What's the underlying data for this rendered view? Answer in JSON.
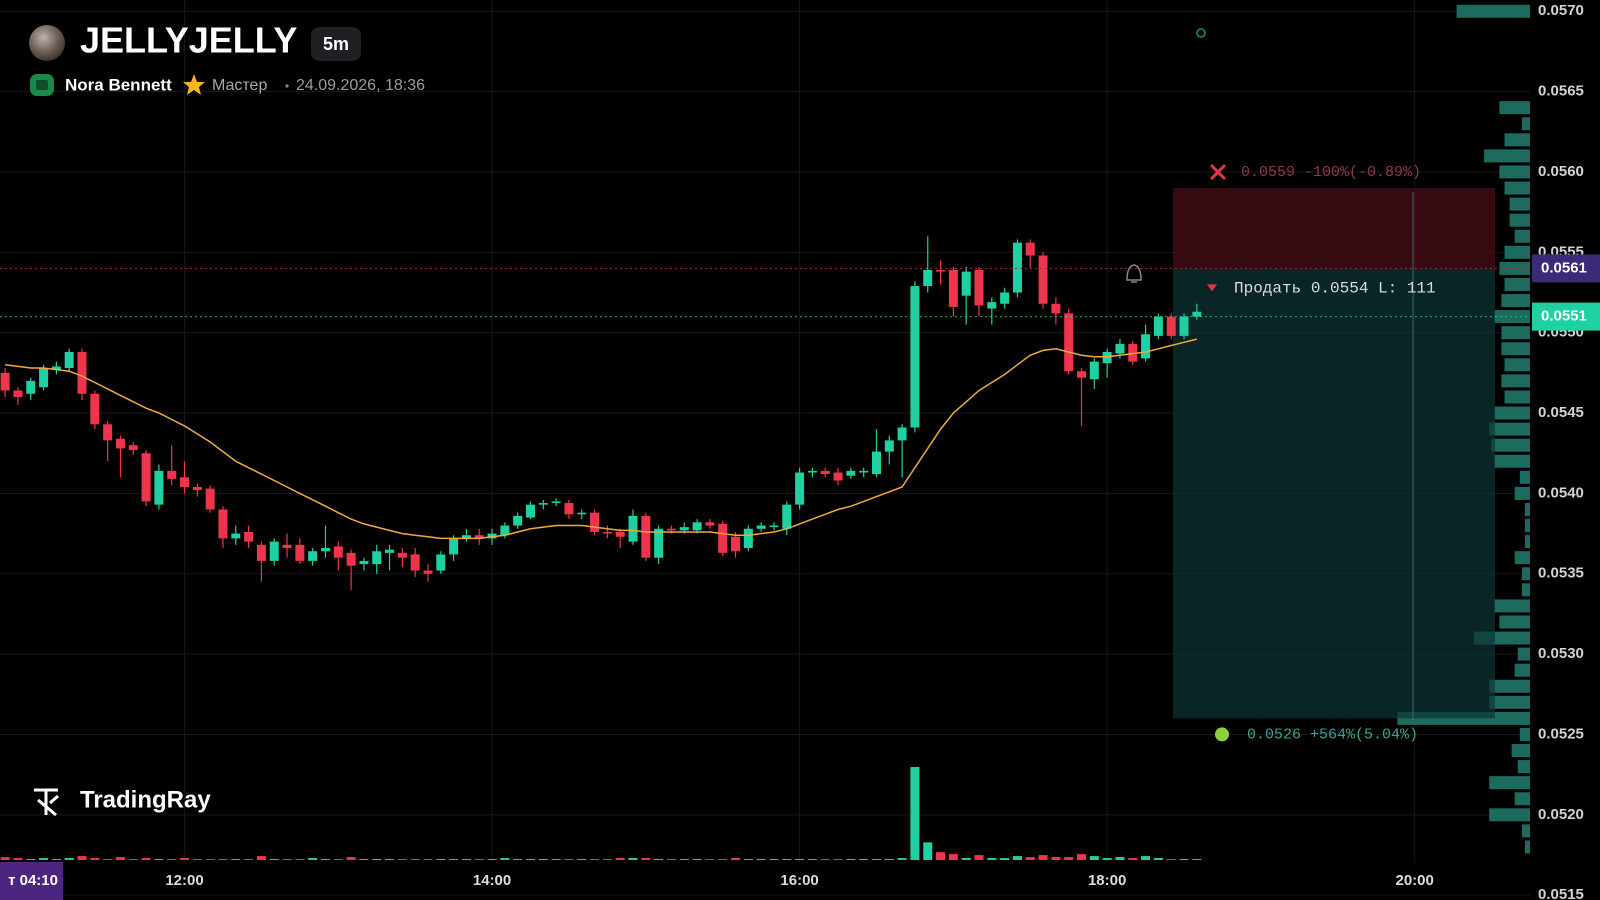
{
  "header": {
    "title": "JELLYJELLY",
    "interval": "5m",
    "author": "Nora Bennett",
    "rank": "Мастер",
    "datetime": "24.09.2026, 18:36"
  },
  "brand": "TradingRay",
  "chart_data": {
    "type": "candlestick",
    "x": [
      "10:50",
      "10:55",
      "11:00",
      "11:05",
      "11:10",
      "11:15",
      "11:20",
      "11:25",
      "11:30",
      "11:35",
      "11:40",
      "11:45",
      "11:50",
      "11:55",
      "12:00",
      "12:05",
      "12:10",
      "12:15",
      "12:20",
      "12:25",
      "12:30",
      "12:35",
      "12:40",
      "12:45",
      "12:50",
      "12:55",
      "13:00",
      "13:05",
      "13:10",
      "13:15",
      "13:20",
      "13:25",
      "13:30",
      "13:35",
      "13:40",
      "13:45",
      "13:50",
      "13:55",
      "14:00",
      "14:05",
      "14:10",
      "14:15",
      "14:20",
      "14:25",
      "14:30",
      "14:35",
      "14:40",
      "14:45",
      "14:50",
      "14:55",
      "15:00",
      "15:05",
      "15:10",
      "15:15",
      "15:20",
      "15:25",
      "15:30",
      "15:35",
      "15:40",
      "15:45",
      "15:50",
      "15:55",
      "16:00",
      "16:05",
      "16:10",
      "16:15",
      "16:20",
      "16:25",
      "16:30",
      "16:35",
      "16:40",
      "16:45",
      "16:50",
      "16:55",
      "17:00",
      "17:05",
      "17:10",
      "17:15",
      "17:20",
      "17:25",
      "17:30",
      "17:35",
      "17:40",
      "17:45",
      "17:50",
      "17:55",
      "18:00",
      "18:05",
      "18:10",
      "18:15",
      "18:20",
      "18:25",
      "18:30",
      "18:35"
    ],
    "open": [
      0.05475,
      0.05464,
      0.05462,
      0.05466,
      0.05477,
      0.05478,
      0.05488,
      0.05462,
      0.05443,
      0.05434,
      0.0543,
      0.05425,
      0.05393,
      0.05414,
      0.0541,
      0.05404,
      0.05403,
      0.0539,
      0.05372,
      0.05376,
      0.05368,
      0.05358,
      0.05368,
      0.05368,
      0.05358,
      0.05364,
      0.05367,
      0.05363,
      0.05356,
      0.05356,
      0.05363,
      0.05363,
      0.05362,
      0.05352,
      0.05352,
      0.05362,
      0.05372,
      0.05374,
      0.05372,
      0.05374,
      0.0538,
      0.05385,
      0.05393,
      0.05394,
      0.05394,
      0.05387,
      0.05388,
      0.05376,
      0.05376,
      0.0537,
      0.05386,
      0.0536,
      0.05378,
      0.05377,
      0.05377,
      0.05382,
      0.05381,
      0.05373,
      0.05366,
      0.05378,
      0.05379,
      0.05378,
      0.05393,
      0.05413,
      0.05414,
      0.05413,
      0.05411,
      0.05413,
      0.05412,
      0.05426,
      0.05433,
      0.05441,
      0.05529,
      0.05539,
      0.05539,
      0.05523,
      0.05539,
      0.05515,
      0.05518,
      0.05525,
      0.05556,
      0.05548,
      0.05518,
      0.05512,
      0.05476,
      0.05471,
      0.05481,
      0.05487,
      0.05493,
      0.05484,
      0.05498,
      0.0551,
      0.05498,
      0.0551
    ],
    "high": [
      0.05478,
      0.05466,
      0.05472,
      0.0548,
      0.05482,
      0.0549,
      0.0549,
      0.05464,
      0.05445,
      0.05436,
      0.05432,
      0.05427,
      0.05418,
      0.0543,
      0.0542,
      0.05406,
      0.05405,
      0.05392,
      0.0538,
      0.0538,
      0.0537,
      0.05372,
      0.05375,
      0.05372,
      0.05366,
      0.0538,
      0.0537,
      0.05365,
      0.0536,
      0.05368,
      0.05368,
      0.05366,
      0.05366,
      0.05356,
      0.05364,
      0.05374,
      0.05378,
      0.05378,
      0.05378,
      0.05382,
      0.05388,
      0.05395,
      0.05396,
      0.05397,
      0.05396,
      0.0539,
      0.0539,
      0.0538,
      0.05378,
      0.0539,
      0.05388,
      0.0538,
      0.0538,
      0.05382,
      0.05384,
      0.05384,
      0.05383,
      0.05376,
      0.0538,
      0.05382,
      0.05382,
      0.05395,
      0.05416,
      0.05416,
      0.05416,
      0.05416,
      0.05416,
      0.05416,
      0.0544,
      0.05436,
      0.05443,
      0.05532,
      0.0556,
      0.05545,
      0.05541,
      0.05541,
      0.05541,
      0.05522,
      0.05528,
      0.05558,
      0.05558,
      0.0555,
      0.05522,
      0.05515,
      0.05478,
      0.05484,
      0.0549,
      0.05496,
      0.05495,
      0.05505,
      0.05512,
      0.05512,
      0.05512,
      0.05518
    ],
    "low": [
      0.0546,
      0.05455,
      0.05458,
      0.05464,
      0.05474,
      0.05476,
      0.05458,
      0.0544,
      0.0542,
      0.0541,
      0.05424,
      0.05392,
      0.0539,
      0.05405,
      0.054,
      0.05398,
      0.05388,
      0.05366,
      0.05368,
      0.05366,
      0.05345,
      0.05355,
      0.0536,
      0.05356,
      0.05355,
      0.0536,
      0.05352,
      0.0534,
      0.05352,
      0.0535,
      0.05352,
      0.05354,
      0.05348,
      0.05345,
      0.0535,
      0.05358,
      0.0537,
      0.05368,
      0.05368,
      0.05372,
      0.05378,
      0.05384,
      0.0539,
      0.05392,
      0.05384,
      0.05384,
      0.05374,
      0.05372,
      0.05366,
      0.05368,
      0.05358,
      0.05356,
      0.05375,
      0.05375,
      0.05375,
      0.05378,
      0.05361,
      0.0536,
      0.05364,
      0.05376,
      0.05377,
      0.05374,
      0.0539,
      0.0541,
      0.0541,
      0.05405,
      0.05409,
      0.0541,
      0.0541,
      0.05418,
      0.0541,
      0.05438,
      0.05525,
      0.0553,
      0.0551,
      0.05505,
      0.0551,
      0.05505,
      0.05515,
      0.05522,
      0.0554,
      0.05515,
      0.05505,
      0.05474,
      0.05442,
      0.05465,
      0.05472,
      0.05484,
      0.0548,
      0.05482,
      0.05496,
      0.05496,
      0.05496,
      0.05508
    ],
    "close": [
      0.05464,
      0.0546,
      0.0547,
      0.05478,
      0.05479,
      0.05488,
      0.05462,
      0.05443,
      0.05433,
      0.05428,
      0.05427,
      0.05395,
      0.05414,
      0.05409,
      0.05404,
      0.05402,
      0.0539,
      0.05372,
      0.05375,
      0.0537,
      0.05358,
      0.0537,
      0.05366,
      0.05358,
      0.05364,
      0.05366,
      0.0536,
      0.05355,
      0.05358,
      0.05364,
      0.05365,
      0.0536,
      0.05352,
      0.0535,
      0.05362,
      0.05372,
      0.05374,
      0.05372,
      0.05375,
      0.0538,
      0.05386,
      0.05393,
      0.05394,
      0.05395,
      0.05387,
      0.05388,
      0.05376,
      0.05375,
      0.05373,
      0.05386,
      0.0536,
      0.05378,
      0.05377,
      0.05379,
      0.05382,
      0.0538,
      0.05363,
      0.05364,
      0.05378,
      0.0538,
      0.0538,
      0.05393,
      0.05413,
      0.05414,
      0.05412,
      0.05408,
      0.05414,
      0.05414,
      0.05426,
      0.05433,
      0.05441,
      0.05529,
      0.05539,
      0.05538,
      0.05516,
      0.05538,
      0.05517,
      0.05519,
      0.05525,
      0.05556,
      0.05548,
      0.05518,
      0.05512,
      0.05476,
      0.05472,
      0.05482,
      0.05488,
      0.05493,
      0.05482,
      0.05499,
      0.0551,
      0.05498,
      0.0551,
      0.05513
    ],
    "up_color": "#1fd1a2",
    "down_color": "#f0344b",
    "moving_average": {
      "color": "#f2a93b",
      "values": [
        0.0548,
        0.05479,
        0.05478,
        0.05478,
        0.05477,
        0.05476,
        0.05473,
        0.05469,
        0.05465,
        0.05461,
        0.05457,
        0.05453,
        0.0545,
        0.05446,
        0.05442,
        0.05437,
        0.05432,
        0.05426,
        0.0542,
        0.05416,
        0.05412,
        0.05408,
        0.05404,
        0.054,
        0.05396,
        0.05392,
        0.05388,
        0.05384,
        0.05381,
        0.05379,
        0.05377,
        0.05375,
        0.05374,
        0.05373,
        0.05372,
        0.05372,
        0.05372,
        0.05372,
        0.05373,
        0.05374,
        0.05376,
        0.05378,
        0.05379,
        0.0538,
        0.0538,
        0.0538,
        0.05379,
        0.05378,
        0.05377,
        0.05377,
        0.05376,
        0.05376,
        0.05376,
        0.05376,
        0.05376,
        0.05376,
        0.05375,
        0.05374,
        0.05374,
        0.05375,
        0.05376,
        0.05378,
        0.05381,
        0.05384,
        0.05387,
        0.0539,
        0.05392,
        0.05395,
        0.05398,
        0.05401,
        0.05404,
        0.05416,
        0.05428,
        0.0544,
        0.0545,
        0.05457,
        0.05464,
        0.05469,
        0.05474,
        0.0548,
        0.05486,
        0.05489,
        0.0549,
        0.05488,
        0.05486,
        0.05485,
        0.05485,
        0.05486,
        0.05487,
        0.05488,
        0.0549,
        0.05492,
        0.05494,
        0.05496
      ]
    },
    "volume": [
      3,
      2,
      1,
      2,
      1,
      2,
      4,
      2,
      1,
      3,
      1,
      2,
      1,
      1,
      2,
      1,
      1,
      1,
      1,
      1,
      4,
      1,
      1,
      1,
      2,
      1,
      1,
      3,
      1,
      1,
      1,
      1,
      1,
      1,
      1,
      1,
      1,
      1,
      1,
      2,
      1,
      1,
      1,
      1,
      1,
      1,
      1,
      1,
      2,
      2,
      2,
      1,
      1,
      1,
      1,
      1,
      1,
      2,
      1,
      1,
      1,
      1,
      1,
      1,
      1,
      1,
      1,
      1,
      1,
      1,
      2,
      95,
      18,
      8,
      6,
      2,
      5,
      2,
      2,
      4,
      3,
      5,
      3,
      3,
      6,
      4,
      2,
      3,
      2,
      4,
      2,
      1,
      1,
      1
    ],
    "volume_profile": {
      "color": "#1d6b5f",
      "prices": [
        0.057,
        0.0569,
        0.0568,
        0.0567,
        0.0566,
        0.0565,
        0.0564,
        0.0563,
        0.0562,
        0.0561,
        0.056,
        0.0559,
        0.0558,
        0.0557,
        0.0556,
        0.0555,
        0.0554,
        0.0553,
        0.0552,
        0.0551,
        0.055,
        0.0549,
        0.0548,
        0.0547,
        0.0546,
        0.0545,
        0.0544,
        0.0543,
        0.0542,
        0.0541,
        0.054,
        0.0539,
        0.0538,
        0.0537,
        0.0536,
        0.0535,
        0.0534,
        0.0533,
        0.0532,
        0.0531,
        0.053,
        0.0529,
        0.0528,
        0.0527,
        0.0526,
        0.0525,
        0.0524,
        0.0523,
        0.0522,
        0.0521,
        0.052,
        0.0519,
        0.0518,
        0.0517
      ],
      "values": [
        72,
        0,
        0,
        0,
        0,
        0,
        30,
        8,
        25,
        45,
        30,
        25,
        20,
        20,
        15,
        25,
        30,
        25,
        28,
        35,
        28,
        28,
        25,
        28,
        25,
        35,
        40,
        38,
        35,
        10,
        15,
        5,
        5,
        5,
        15,
        8,
        8,
        35,
        30,
        55,
        12,
        15,
        40,
        40,
        130,
        10,
        18,
        12,
        40,
        15,
        40,
        8,
        5,
        0
      ]
    },
    "xlim": [
      "10:48",
      "20:45"
    ],
    "xticks": [
      "12:00",
      "14:00",
      "16:00",
      "18:00",
      "20:00"
    ],
    "ylim": [
      0.05147,
      0.05707
    ],
    "yticks": [
      0.0515,
      {
        "value": 0.052,
        "label": "0.0520"
      },
      0.0525,
      {
        "value": 0.053,
        "label": "0.0530"
      },
      0.0535,
      {
        "value": 0.054,
        "label": "0.0540"
      },
      0.0545,
      {
        "value": 0.055,
        "label": "0.0550"
      },
      0.0555,
      {
        "value": 0.056,
        "label": "0.0560"
      },
      0.0565,
      {
        "value": 0.057,
        "label": "0.0570"
      }
    ],
    "grid": true,
    "current_price": 0.0551,
    "current_price_color": "#1fd1a2",
    "alert_label": "0.0561",
    "cursor_time_label": "т 04:10",
    "position": {
      "stop": 0.0559,
      "entry": 0.0554,
      "target": 0.0526,
      "stop_label": "0.0559 -100%(-0.89%)",
      "entry_label": "Продать 0.0554 L: 111",
      "target_label": "0.0526 +564%(5.04%)"
    }
  }
}
